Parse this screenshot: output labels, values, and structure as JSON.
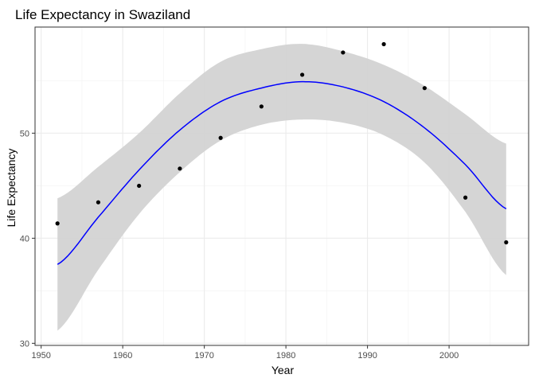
{
  "chart_data": {
    "type": "scatter",
    "title": "Life Expectancy in Swaziland",
    "xlabel": "Year",
    "ylabel": "Life Expectancy",
    "xlim": [
      1949.25,
      2009.75
    ],
    "ylim": [
      29.8,
      60.1
    ],
    "xticks": [
      1950,
      1960,
      1970,
      1980,
      1990,
      2000
    ],
    "yticks": [
      30,
      40,
      50
    ],
    "grid": true,
    "legend": "none",
    "series": [
      {
        "type": "scatter",
        "color": "#000000",
        "points": [
          {
            "x": 1952,
            "y": 41.41
          },
          {
            "x": 1957,
            "y": 43.42
          },
          {
            "x": 1962,
            "y": 44.99
          },
          {
            "x": 1967,
            "y": 46.63
          },
          {
            "x": 1972,
            "y": 49.55
          },
          {
            "x": 1977,
            "y": 52.54
          },
          {
            "x": 1982,
            "y": 55.56
          },
          {
            "x": 1987,
            "y": 57.68
          },
          {
            "x": 1992,
            "y": 58.47
          },
          {
            "x": 1997,
            "y": 54.29
          },
          {
            "x": 2002,
            "y": 43.87
          },
          {
            "x": 2007,
            "y": 39.61
          }
        ]
      },
      {
        "type": "smooth",
        "color": "#0000ff",
        "ribbon_color": "#d3d3d3",
        "x": [
          1952,
          1957,
          1962,
          1967,
          1972,
          1977,
          1982,
          1987,
          1992,
          1997,
          2002,
          2007
        ],
        "fit": [
          37.5,
          42.0,
          46.5,
          50.3,
          53.0,
          54.3,
          54.9,
          54.4,
          53.0,
          50.5,
          47.0,
          42.8
        ],
        "lower": [
          31.2,
          37.0,
          42.3,
          46.3,
          49.3,
          50.8,
          51.3,
          51.0,
          49.8,
          47.2,
          42.5,
          36.5
        ],
        "upper": [
          43.8,
          46.8,
          50.0,
          53.8,
          56.8,
          58.0,
          58.5,
          57.8,
          56.5,
          54.5,
          51.8,
          49.0
        ]
      }
    ]
  }
}
